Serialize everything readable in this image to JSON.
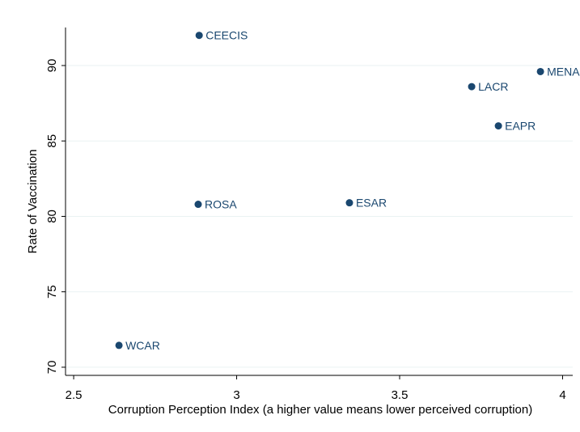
{
  "chart_data": {
    "type": "scatter",
    "xlabel": "Corruption Perception Index (a higher value means lower perceived corruption)",
    "ylabel": "Rate of Vaccination",
    "labels": [
      "CEECIS",
      "MENA",
      "LACR",
      "EAPR",
      "ROSA",
      "ESAR",
      "WCAR"
    ],
    "x": [
      2.885,
      3.932,
      3.721,
      3.803,
      2.882,
      3.346,
      2.639
    ],
    "values": [
      92.0,
      89.6,
      88.6,
      86.0,
      80.8,
      80.9,
      71.45
    ],
    "color": "#1a476f",
    "xlim": [
      2.475,
      4.031
    ],
    "xticks": [
      2.5,
      3,
      3.5,
      4
    ],
    "ylim": [
      69.46,
      92.52
    ],
    "yticks": [
      70,
      75,
      80,
      85,
      90
    ],
    "grid": true
  }
}
